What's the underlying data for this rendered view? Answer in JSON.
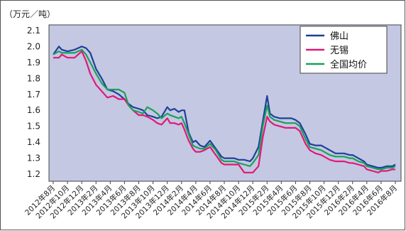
{
  "chart_data": {
    "type": "line",
    "unit_label": "（万元／吨）",
    "xlabel": "",
    "ylabel": "",
    "ylim": [
      1.2,
      2.1
    ],
    "yticks": [
      "2.1",
      "2.0",
      "1.9",
      "1.8",
      "1.7",
      "1.6",
      "1.5",
      "1.4",
      "1.3",
      "1.2"
    ],
    "grid": false,
    "legend_position": "top-right",
    "background_color": "#c4c8e2",
    "categories": [
      "2012年8月",
      "2012年10月",
      "2012年12月",
      "2013年2月",
      "2013年4月",
      "2013年6月",
      "2013年8月",
      "2013年10月",
      "2013年12月",
      "2014年2月",
      "2014年4月",
      "2014年6月",
      "2014年8月",
      "2014年10月",
      "2014年12月",
      "2015年2月",
      "2015年4月",
      "2015年6月",
      "2015年8月",
      "2015年10月",
      "2015年12月",
      "2016年2月",
      "2016年4月",
      "2016年6月",
      "2016年8月"
    ],
    "series": [
      {
        "name": "佛山",
        "color": "#1f3f9a",
        "x": [
          0,
          0.4,
          0.6,
          1,
          1.5,
          2,
          2.3,
          2.6,
          3,
          3.4,
          3.8,
          4.2,
          4.6,
          5,
          5.3,
          5.6,
          6,
          6.3,
          6.6,
          7,
          7.3,
          7.6,
          8,
          8.2,
          8.5,
          8.8,
          9,
          9.2,
          9.5,
          9.8,
          10,
          10.3,
          10.6,
          11,
          11.4,
          11.8,
          12,
          12.3,
          12.7,
          13,
          13.4,
          13.8,
          14,
          14.4,
          14.7,
          15,
          15.2,
          15.5,
          15.9,
          16.3,
          16.7,
          17,
          17.3,
          17.7,
          18,
          18.4,
          18.8,
          19,
          19.4,
          19.8,
          20,
          20.4,
          20.8,
          21,
          21.4,
          21.8,
          22,
          22.4,
          22.8,
          23,
          23.4,
          23.8,
          24
        ],
        "values": [
          1.95,
          2.0,
          1.98,
          1.97,
          1.98,
          2.0,
          1.99,
          1.96,
          1.86,
          1.8,
          1.73,
          1.72,
          1.7,
          1.67,
          1.64,
          1.62,
          1.61,
          1.6,
          1.57,
          1.56,
          1.55,
          1.56,
          1.62,
          1.6,
          1.61,
          1.59,
          1.6,
          1.6,
          1.46,
          1.4,
          1.41,
          1.38,
          1.37,
          1.41,
          1.36,
          1.31,
          1.3,
          1.3,
          1.3,
          1.29,
          1.29,
          1.28,
          1.3,
          1.37,
          1.53,
          1.69,
          1.58,
          1.56,
          1.55,
          1.55,
          1.55,
          1.54,
          1.52,
          1.45,
          1.39,
          1.38,
          1.38,
          1.37,
          1.35,
          1.33,
          1.33,
          1.33,
          1.32,
          1.32,
          1.3,
          1.28,
          1.26,
          1.25,
          1.24,
          1.24,
          1.25,
          1.25,
          1.26
        ]
      },
      {
        "name": "无锡",
        "color": "#e0187a",
        "x": [
          0,
          0.4,
          0.6,
          1,
          1.5,
          2,
          2.3,
          2.6,
          3,
          3.4,
          3.8,
          4.2,
          4.6,
          5,
          5.3,
          5.6,
          6,
          6.3,
          6.6,
          7,
          7.3,
          7.6,
          8,
          8.2,
          8.5,
          8.8,
          9,
          9.2,
          9.5,
          9.8,
          10,
          10.3,
          10.6,
          11,
          11.4,
          11.8,
          12,
          12.3,
          12.7,
          13,
          13.4,
          13.8,
          14,
          14.4,
          14.7,
          15,
          15.2,
          15.5,
          15.9,
          16.3,
          16.7,
          17,
          17.3,
          17.7,
          18,
          18.4,
          18.8,
          19,
          19.4,
          19.8,
          20,
          20.4,
          20.8,
          21,
          21.4,
          21.8,
          22,
          22.4,
          22.8,
          23,
          23.4,
          23.8,
          24
        ],
        "values": [
          1.93,
          1.93,
          1.95,
          1.93,
          1.93,
          1.97,
          1.91,
          1.83,
          1.76,
          1.72,
          1.68,
          1.69,
          1.67,
          1.67,
          1.63,
          1.6,
          1.57,
          1.57,
          1.56,
          1.54,
          1.52,
          1.51,
          1.55,
          1.52,
          1.52,
          1.51,
          1.52,
          1.48,
          1.41,
          1.36,
          1.34,
          1.34,
          1.35,
          1.37,
          1.32,
          1.27,
          1.26,
          1.26,
          1.26,
          1.26,
          1.21,
          1.21,
          1.21,
          1.25,
          1.43,
          1.56,
          1.53,
          1.51,
          1.5,
          1.49,
          1.49,
          1.49,
          1.47,
          1.39,
          1.35,
          1.33,
          1.32,
          1.31,
          1.29,
          1.28,
          1.28,
          1.28,
          1.27,
          1.27,
          1.26,
          1.25,
          1.23,
          1.22,
          1.21,
          1.22,
          1.22,
          1.23,
          1.23
        ]
      },
      {
        "name": "全国均价",
        "color": "#19a15a",
        "x": [
          0,
          0.4,
          0.6,
          1,
          1.5,
          2,
          2.3,
          2.6,
          3,
          3.4,
          3.8,
          4.2,
          4.6,
          5,
          5.3,
          5.6,
          6,
          6.3,
          6.6,
          7,
          7.3,
          7.6,
          8,
          8.2,
          8.5,
          8.8,
          9,
          9.2,
          9.5,
          9.8,
          10,
          10.3,
          10.6,
          11,
          11.4,
          11.8,
          12,
          12.3,
          12.7,
          13,
          13.4,
          13.8,
          14,
          14.4,
          14.7,
          15,
          15.2,
          15.5,
          15.9,
          16.3,
          16.7,
          17,
          17.3,
          17.7,
          18,
          18.4,
          18.8,
          19,
          19.4,
          19.8,
          20,
          20.4,
          20.8,
          21,
          21.4,
          21.8,
          22,
          22.4,
          22.8,
          23,
          23.4,
          23.8,
          24
        ],
        "values": [
          1.95,
          1.97,
          1.96,
          1.96,
          1.96,
          1.98,
          1.95,
          1.9,
          1.83,
          1.77,
          1.73,
          1.73,
          1.73,
          1.71,
          1.63,
          1.6,
          1.59,
          1.58,
          1.62,
          1.6,
          1.58,
          1.55,
          1.58,
          1.57,
          1.56,
          1.55,
          1.56,
          1.52,
          1.45,
          1.38,
          1.37,
          1.36,
          1.36,
          1.39,
          1.35,
          1.29,
          1.28,
          1.28,
          1.28,
          1.27,
          1.26,
          1.25,
          1.27,
          1.32,
          1.5,
          1.63,
          1.56,
          1.54,
          1.53,
          1.52,
          1.52,
          1.52,
          1.5,
          1.42,
          1.37,
          1.36,
          1.35,
          1.34,
          1.32,
          1.31,
          1.31,
          1.31,
          1.3,
          1.3,
          1.28,
          1.27,
          1.25,
          1.24,
          1.23,
          1.23,
          1.24,
          1.24,
          1.25
        ]
      }
    ]
  }
}
